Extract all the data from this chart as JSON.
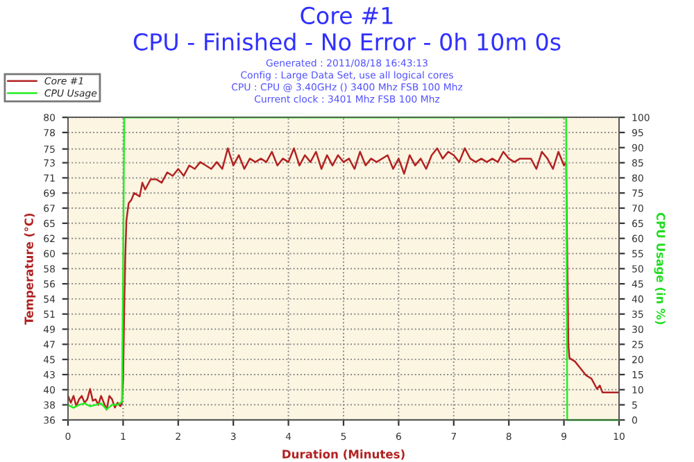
{
  "chart_data": {
    "type": "line",
    "title": "Core #1",
    "subtitle": "CPU - Finished - No Error - 0h 10m 0s",
    "annotations": [
      "Generated : 2011/08/18 16:43:13",
      "Config : Large Data Set, use all logical cores",
      "CPU : CPU @ 3.40GHz () 3400 Mhz FSB 100 Mhz",
      "Current clock : 3401 Mhz FSB 100 Mhz"
    ],
    "xlabel": "Duration (Minutes)",
    "ylabel": "Temperature (°C)",
    "y2label": "CPU Usage (in %)",
    "series": [
      {
        "name": "Core #1",
        "color": "#b22222",
        "x": [
          0,
          0.05,
          0.1,
          0.15,
          0.2,
          0.25,
          0.3,
          0.35,
          0.4,
          0.45,
          0.5,
          0.55,
          0.6,
          0.65,
          0.7,
          0.75,
          0.8,
          0.85,
          0.9,
          0.95,
          0.98,
          1.0,
          1.02,
          1.04,
          1.06,
          1.1,
          1.15,
          1.2,
          1.3,
          1.35,
          1.4,
          1.5,
          1.6,
          1.7,
          1.8,
          1.9,
          2.0,
          2.1,
          2.2,
          2.3,
          2.4,
          2.5,
          2.6,
          2.7,
          2.8,
          2.9,
          3.0,
          3.1,
          3.2,
          3.3,
          3.4,
          3.5,
          3.6,
          3.7,
          3.8,
          3.9,
          4.0,
          4.1,
          4.2,
          4.3,
          4.4,
          4.5,
          4.6,
          4.7,
          4.8,
          4.9,
          5.0,
          5.1,
          5.2,
          5.3,
          5.4,
          5.5,
          5.6,
          5.8,
          5.9,
          6.0,
          6.1,
          6.2,
          6.3,
          6.4,
          6.5,
          6.6,
          6.7,
          6.8,
          6.9,
          7.0,
          7.1,
          7.2,
          7.3,
          7.4,
          7.5,
          7.6,
          7.7,
          7.8,
          7.9,
          8.0,
          8.1,
          8.2,
          8.4,
          8.5,
          8.6,
          8.7,
          8.8,
          8.9,
          9.0,
          9.04,
          9.06,
          9.08,
          9.1,
          9.2,
          9.3,
          9.4,
          9.5,
          9.6,
          9.65,
          9.7,
          10
        ],
        "values": [
          39.5,
          38.5,
          39.5,
          38,
          39,
          39.5,
          38.5,
          39,
          40.5,
          38.8,
          39,
          38.2,
          39.5,
          38.5,
          37.5,
          39.5,
          39,
          37.8,
          38.5,
          38,
          38.5,
          42,
          52,
          60,
          65,
          67.5,
          68,
          69,
          68.5,
          70.5,
          69.5,
          71,
          71,
          70.5,
          72,
          71.5,
          72.5,
          71.5,
          73,
          72.5,
          73.5,
          73,
          72.5,
          73.5,
          72.5,
          75.5,
          73,
          74.5,
          72.5,
          74,
          73.5,
          74,
          73.5,
          75,
          73,
          74,
          73.5,
          75.5,
          73,
          74.5,
          73.5,
          75,
          72.5,
          74.5,
          73,
          74.5,
          73.5,
          74,
          72.5,
          75,
          73,
          74,
          73.5,
          74.5,
          72.5,
          74,
          71.8,
          74.5,
          73,
          74,
          72.5,
          74.5,
          75.5,
          74,
          75,
          74.5,
          73.5,
          75.5,
          74,
          73.5,
          74,
          73.5,
          74,
          73.5,
          75,
          74,
          73.5,
          74,
          74,
          72.5,
          75,
          74,
          72.5,
          75,
          73,
          73.5,
          60,
          47,
          45,
          44.5,
          43.5,
          42.5,
          42,
          40.5,
          41,
          40,
          40
        ]
      },
      {
        "name": "CPU Usage",
        "color": "#22ee22",
        "axis": "y2",
        "x": [
          0,
          0.1,
          0.2,
          0.3,
          0.4,
          0.5,
          0.6,
          0.7,
          0.8,
          0.9,
          0.98,
          1.0,
          1.02,
          9.04,
          9.06,
          10
        ],
        "values": [
          5,
          4,
          5,
          5.5,
          4.5,
          5,
          5.5,
          3.5,
          5,
          5,
          6,
          50,
          100,
          100,
          0,
          0
        ]
      }
    ],
    "xlim": [
      0,
      10
    ],
    "xticks": [
      0,
      1,
      2,
      3,
      4,
      5,
      6,
      7,
      8,
      9,
      10
    ],
    "ylim": [
      36,
      80
    ],
    "yticks": [
      36,
      {
        "value": 38.2,
        "label": "38"
      },
      {
        "value": 40.4,
        "label": "40"
      },
      {
        "value": 42.6,
        "label": "43"
      },
      {
        "value": 44.8,
        "label": "45"
      },
      47,
      {
        "value": 49.2,
        "label": "49"
      },
      {
        "value": 51.4,
        "label": "51"
      },
      {
        "value": 53.6,
        "label": "54"
      },
      {
        "value": 55.8,
        "label": "56"
      },
      58,
      {
        "value": 60.2,
        "label": "60"
      },
      {
        "value": 62.4,
        "label": "62"
      },
      {
        "value": 64.6,
        "label": "65"
      },
      {
        "value": 66.8,
        "label": "67"
      },
      69,
      {
        "value": 71.2,
        "label": "71"
      },
      {
        "value": 73.4,
        "label": "73"
      },
      {
        "value": 75.4,
        "label": "75"
      },
      {
        "value": 77.8,
        "label": "78"
      },
      80
    ],
    "y2lim": [
      0,
      100
    ],
    "y2ticks": [
      0,
      5,
      10,
      15,
      20,
      25,
      30,
      35,
      40,
      45,
      50,
      55,
      60,
      65,
      70,
      75,
      80,
      85,
      90,
      95,
      100
    ],
    "grid": true,
    "legend": "top left",
    "line_style": "solid",
    "marker": "none"
  }
}
